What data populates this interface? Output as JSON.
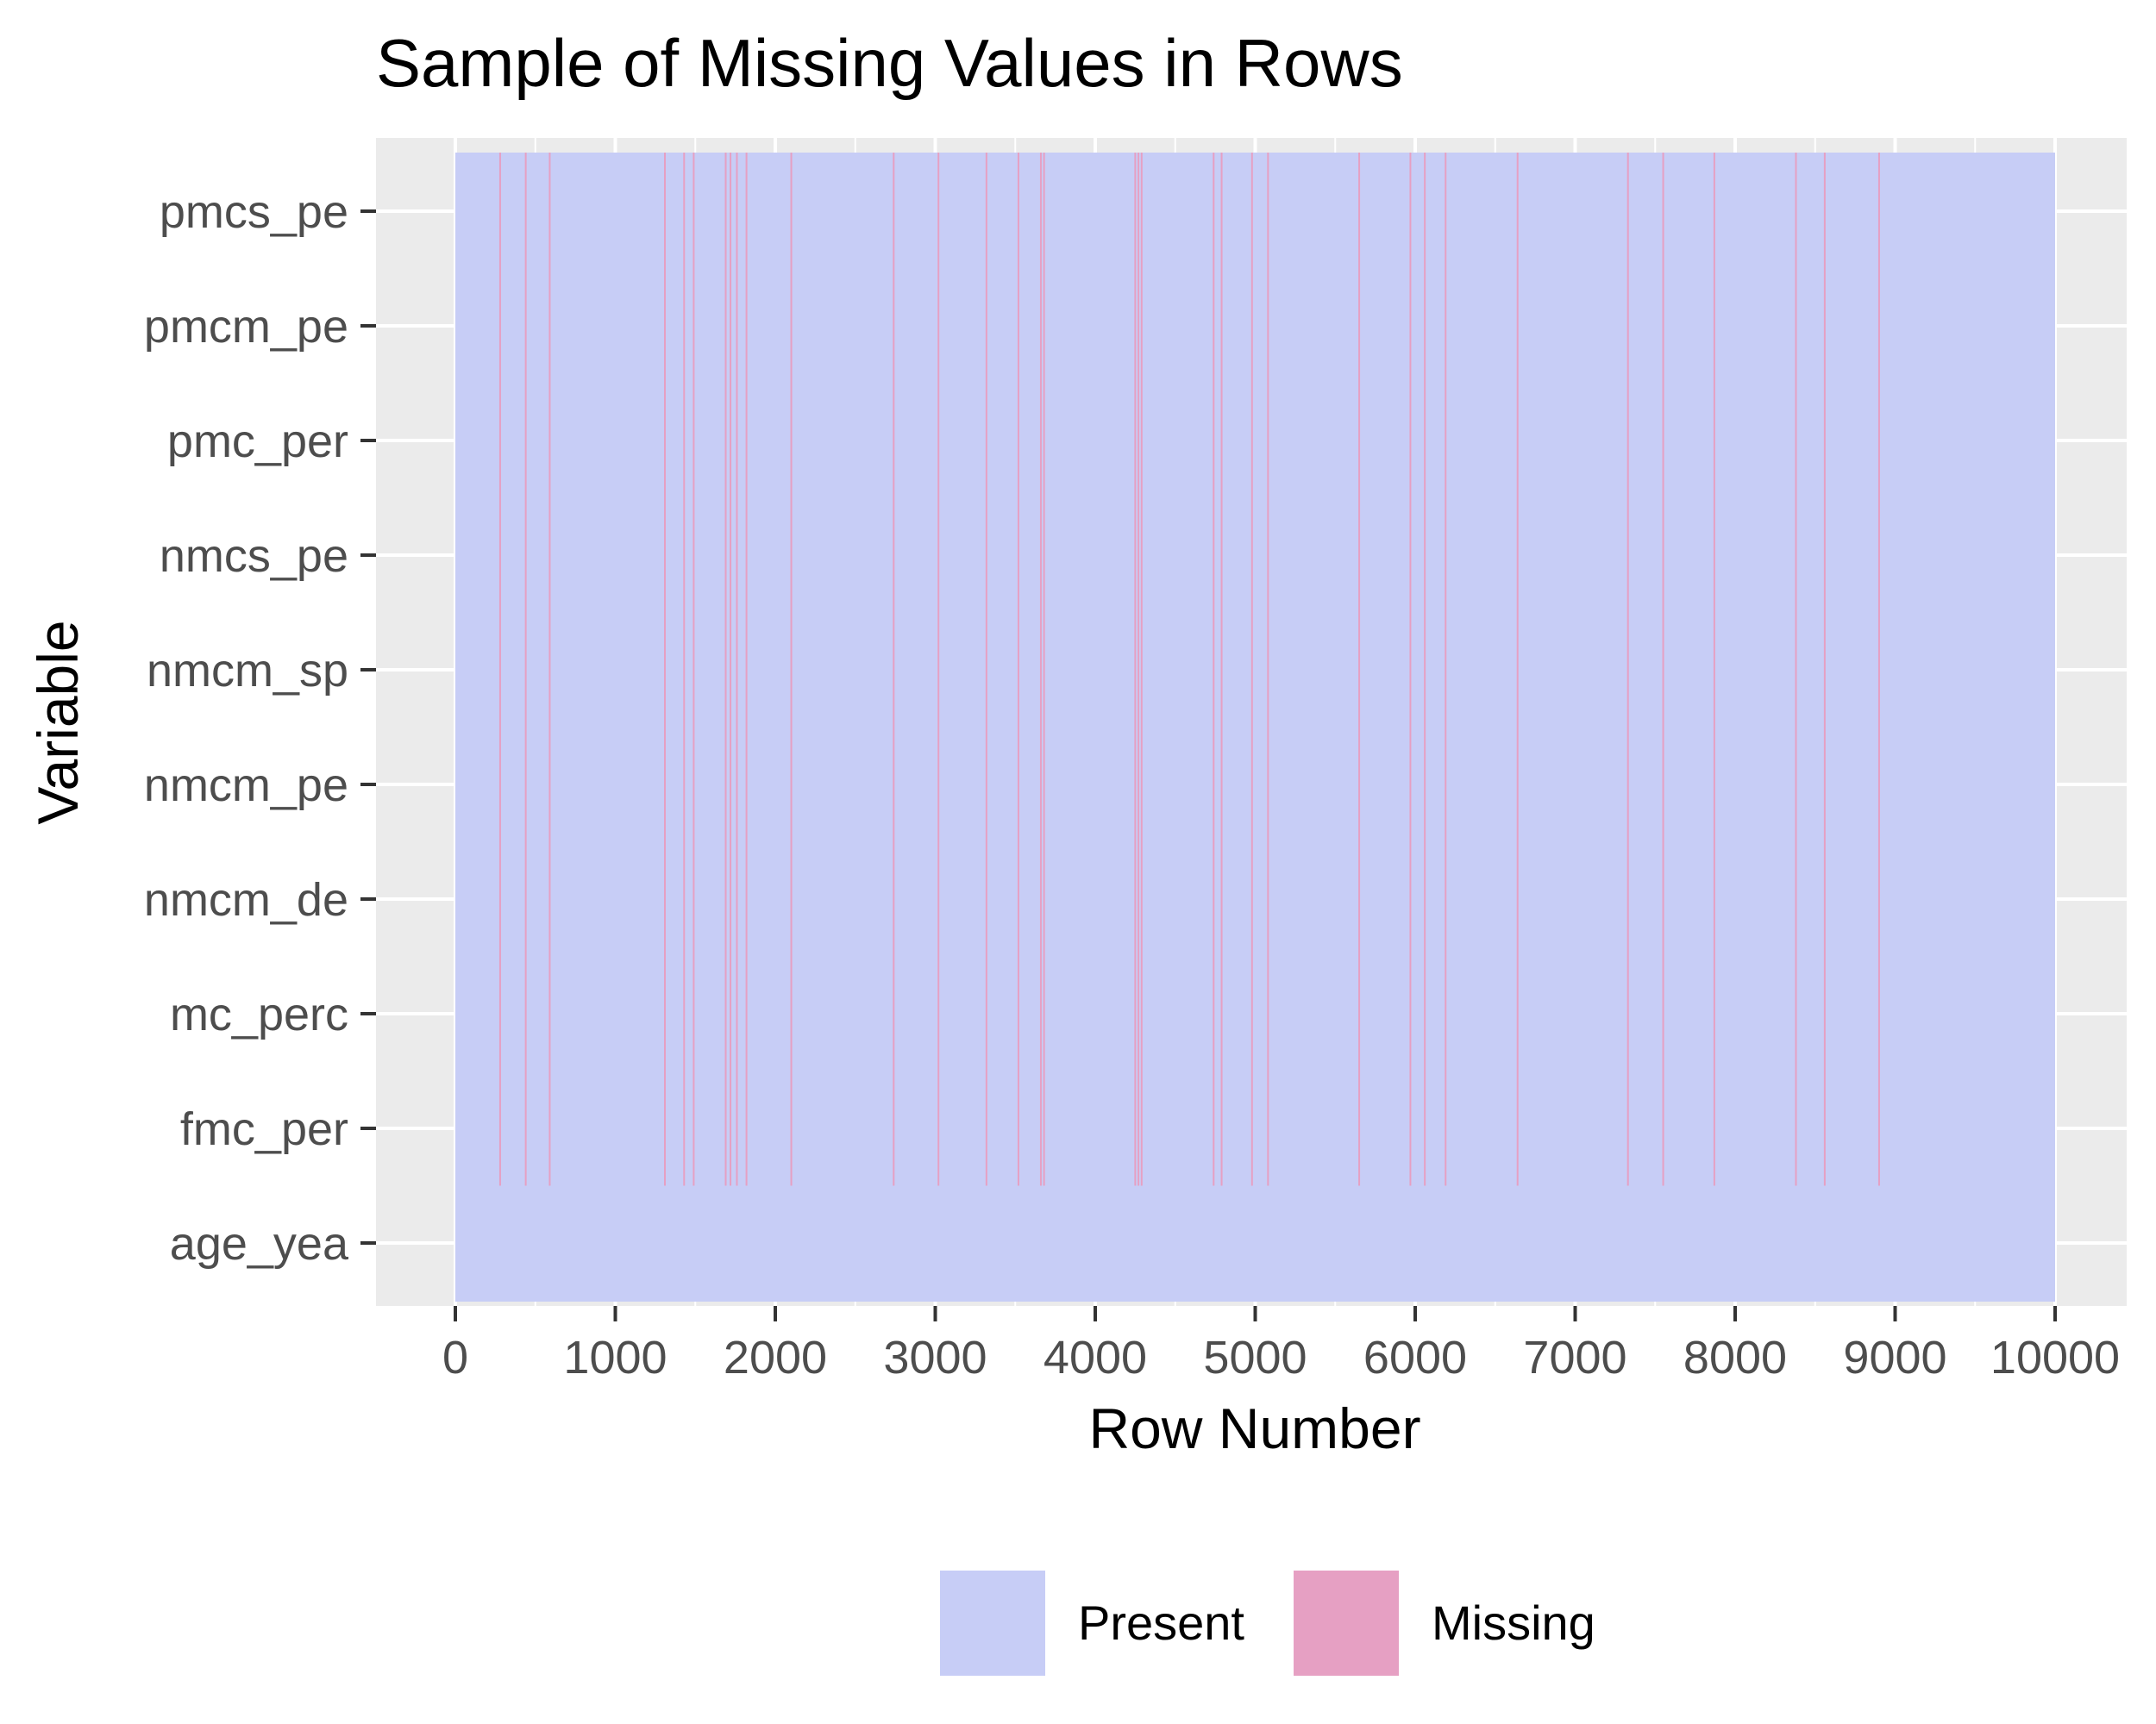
{
  "chart_data": {
    "type": "heatmap",
    "title": "Sample of Missing Values in Rows",
    "xlabel": "Row Number",
    "ylabel": "Variable",
    "xlim": [
      0,
      10000
    ],
    "x_ticks": [
      0,
      1000,
      2000,
      3000,
      4000,
      5000,
      6000,
      7000,
      8000,
      9000,
      10000
    ],
    "variables": [
      "pmcs_pe",
      "pmcm_pe",
      "pmc_per",
      "nmcs_pe",
      "nmcm_sp",
      "nmcm_pe",
      "nmcm_de",
      "mc_perc",
      "fmc_per",
      "age_yea"
    ],
    "legend": [
      {
        "name": "Present",
        "color": "#c7cdf6"
      },
      {
        "name": "Missing",
        "color": "#e6a0c3"
      }
    ],
    "legend_position": "bottom",
    "grid": true,
    "missing_rows": [
      280,
      440,
      590,
      1310,
      1430,
      1490,
      1690,
      1720,
      1760,
      1820,
      2100,
      2740,
      3020,
      3320,
      3520,
      3660,
      3680,
      4250,
      4270,
      4290,
      4740,
      4790,
      4980,
      5080,
      5650,
      5970,
      6060,
      6190,
      6640,
      7330,
      7550,
      7870,
      8380,
      8560,
      8900
    ],
    "missing_variables": [
      "pmcs_pe",
      "pmcm_pe",
      "pmc_per",
      "nmcs_pe",
      "nmcm_sp",
      "nmcm_pe",
      "nmcm_de",
      "mc_perc",
      "fmc_per"
    ]
  }
}
